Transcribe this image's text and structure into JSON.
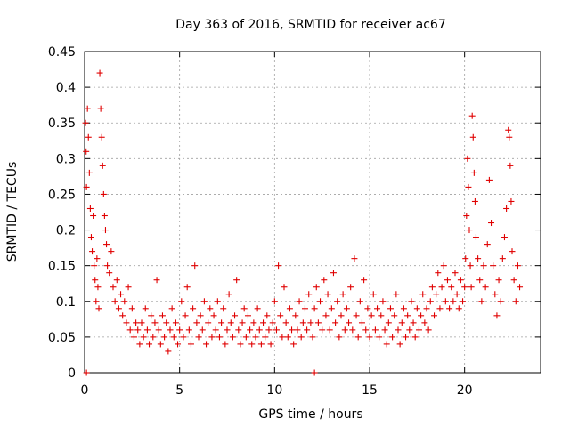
{
  "chart_data": {
    "type": "scatter",
    "title": "Day 363 of 2016, SRMTID for receiver ac67",
    "xlabel": "GPS time / hours",
    "ylabel": "SRMTID / TECUs",
    "xlim": [
      0,
      24
    ],
    "ylim": [
      0,
      0.45
    ],
    "x_ticks": [
      0,
      5,
      10,
      15,
      20
    ],
    "y_ticks": [
      0,
      0.05,
      0.1,
      0.15,
      0.2,
      0.25,
      0.3,
      0.35,
      0.4,
      0.45
    ],
    "x_tick_labels": [
      "0",
      "5",
      "10",
      "15",
      "20"
    ],
    "y_tick_labels": [
      "0",
      "0.05",
      "0.1",
      "0.15",
      "0.2",
      "0.25",
      "0.3",
      "0.35",
      "0.4",
      "0.45"
    ],
    "grid": true,
    "marker": "+",
    "color": "#e00000",
    "series": [
      {
        "name": "SRMTID",
        "points": [
          [
            0.05,
            0.35
          ],
          [
            0.08,
            0.31
          ],
          [
            0.1,
            0.26
          ],
          [
            0.15,
            0.37
          ],
          [
            0.2,
            0.33
          ],
          [
            0.25,
            0.28
          ],
          [
            0.3,
            0.23
          ],
          [
            0.35,
            0.19
          ],
          [
            0.4,
            0.17
          ],
          [
            0.45,
            0.22
          ],
          [
            0.5,
            0.15
          ],
          [
            0.55,
            0.13
          ],
          [
            0.6,
            0.1
          ],
          [
            0.65,
            0.16
          ],
          [
            0.7,
            0.12
          ],
          [
            0.75,
            0.09
          ],
          [
            0.8,
            0.42
          ],
          [
            0.85,
            0.37
          ],
          [
            0.9,
            0.33
          ],
          [
            0.95,
            0.29
          ],
          [
            1.0,
            0.25
          ],
          [
            1.05,
            0.22
          ],
          [
            1.1,
            0.2
          ],
          [
            1.15,
            0.18
          ],
          [
            1.2,
            0.15
          ],
          [
            1.3,
            0.14
          ],
          [
            1.4,
            0.17
          ],
          [
            1.5,
            0.12
          ],
          [
            1.6,
            0.1
          ],
          [
            1.7,
            0.13
          ],
          [
            1.8,
            0.09
          ],
          [
            1.9,
            0.11
          ],
          [
            2.0,
            0.08
          ],
          [
            2.1,
            0.1
          ],
          [
            2.2,
            0.07
          ],
          [
            2.3,
            0.12
          ],
          [
            2.4,
            0.06
          ],
          [
            2.5,
            0.09
          ],
          [
            2.6,
            0.05
          ],
          [
            2.7,
            0.07
          ],
          [
            2.8,
            0.06
          ],
          [
            2.9,
            0.04
          ],
          [
            3.0,
            0.07
          ],
          [
            3.1,
            0.05
          ],
          [
            3.2,
            0.09
          ],
          [
            3.3,
            0.06
          ],
          [
            3.4,
            0.04
          ],
          [
            3.5,
            0.08
          ],
          [
            3.6,
            0.05
          ],
          [
            3.7,
            0.07
          ],
          [
            3.8,
            0.13
          ],
          [
            3.9,
            0.06
          ],
          [
            4.0,
            0.04
          ],
          [
            4.1,
            0.08
          ],
          [
            4.2,
            0.05
          ],
          [
            4.3,
            0.07
          ],
          [
            4.4,
            0.03
          ],
          [
            4.5,
            0.06
          ],
          [
            4.6,
            0.09
          ],
          [
            4.7,
            0.05
          ],
          [
            4.8,
            0.07
          ],
          [
            4.9,
            0.04
          ],
          [
            5.0,
            0.06
          ],
          [
            5.1,
            0.1
          ],
          [
            5.2,
            0.05
          ],
          [
            5.3,
            0.08
          ],
          [
            5.4,
            0.12
          ],
          [
            5.5,
            0.06
          ],
          [
            5.6,
            0.04
          ],
          [
            5.7,
            0.09
          ],
          [
            5.8,
            0.15
          ],
          [
            5.9,
            0.07
          ],
          [
            6.0,
            0.05
          ],
          [
            6.1,
            0.08
          ],
          [
            6.2,
            0.06
          ],
          [
            6.3,
            0.1
          ],
          [
            6.4,
            0.04
          ],
          [
            6.5,
            0.07
          ],
          [
            6.6,
            0.09
          ],
          [
            6.7,
            0.05
          ],
          [
            6.8,
            0.08
          ],
          [
            6.9,
            0.06
          ],
          [
            7.0,
            0.1
          ],
          [
            7.1,
            0.05
          ],
          [
            7.2,
            0.07
          ],
          [
            7.3,
            0.09
          ],
          [
            7.4,
            0.04
          ],
          [
            7.5,
            0.06
          ],
          [
            7.6,
            0.11
          ],
          [
            7.7,
            0.07
          ],
          [
            7.8,
            0.05
          ],
          [
            7.9,
            0.08
          ],
          [
            8.0,
            0.13
          ],
          [
            8.1,
            0.06
          ],
          [
            8.2,
            0.04
          ],
          [
            8.3,
            0.07
          ],
          [
            8.4,
            0.09
          ],
          [
            8.5,
            0.05
          ],
          [
            8.6,
            0.08
          ],
          [
            8.7,
            0.06
          ],
          [
            8.8,
            0.04
          ],
          [
            8.9,
            0.07
          ],
          [
            9.0,
            0.05
          ],
          [
            9.1,
            0.09
          ],
          [
            9.2,
            0.06
          ],
          [
            9.3,
            0.04
          ],
          [
            9.4,
            0.07
          ],
          [
            9.5,
            0.05
          ],
          [
            9.6,
            0.08
          ],
          [
            9.7,
            0.06
          ],
          [
            9.8,
            0.04
          ],
          [
            9.9,
            0.07
          ],
          [
            10.0,
            0.1
          ],
          [
            10.1,
            0.06
          ],
          [
            10.2,
            0.15
          ],
          [
            10.3,
            0.08
          ],
          [
            10.4,
            0.05
          ],
          [
            10.5,
            0.12
          ],
          [
            10.6,
            0.07
          ],
          [
            10.7,
            0.05
          ],
          [
            10.8,
            0.09
          ],
          [
            10.9,
            0.06
          ],
          [
            11.0,
            0.04
          ],
          [
            11.1,
            0.08
          ],
          [
            11.2,
            0.06
          ],
          [
            11.3,
            0.1
          ],
          [
            11.4,
            0.05
          ],
          [
            11.5,
            0.07
          ],
          [
            11.6,
            0.09
          ],
          [
            11.7,
            0.06
          ],
          [
            11.8,
            0.11
          ],
          [
            11.9,
            0.07
          ],
          [
            12.0,
            0.05
          ],
          [
            12.1,
            0.09
          ],
          [
            12.2,
            0.12
          ],
          [
            12.3,
            0.07
          ],
          [
            12.4,
            0.1
          ],
          [
            12.5,
            0.06
          ],
          [
            12.6,
            0.13
          ],
          [
            12.7,
            0.08
          ],
          [
            12.8,
            0.11
          ],
          [
            12.9,
            0.06
          ],
          [
            13.0,
            0.09
          ],
          [
            13.1,
            0.14
          ],
          [
            13.2,
            0.07
          ],
          [
            13.3,
            0.1
          ],
          [
            13.4,
            0.05
          ],
          [
            13.5,
            0.08
          ],
          [
            13.6,
            0.11
          ],
          [
            13.7,
            0.06
          ],
          [
            13.8,
            0.09
          ],
          [
            13.9,
            0.07
          ],
          [
            14.0,
            0.12
          ],
          [
            14.1,
            0.06
          ],
          [
            14.2,
            0.16
          ],
          [
            14.3,
            0.08
          ],
          [
            14.4,
            0.05
          ],
          [
            14.5,
            0.1
          ],
          [
            14.6,
            0.07
          ],
          [
            14.7,
            0.13
          ],
          [
            14.8,
            0.06
          ],
          [
            14.9,
            0.09
          ],
          [
            15.0,
            0.05
          ],
          [
            15.1,
            0.08
          ],
          [
            15.2,
            0.11
          ],
          [
            15.3,
            0.06
          ],
          [
            15.4,
            0.09
          ],
          [
            15.5,
            0.05
          ],
          [
            15.6,
            0.08
          ],
          [
            15.7,
            0.1
          ],
          [
            15.8,
            0.06
          ],
          [
            15.9,
            0.04
          ],
          [
            16.0,
            0.07
          ],
          [
            16.1,
            0.09
          ],
          [
            16.2,
            0.05
          ],
          [
            16.3,
            0.08
          ],
          [
            16.4,
            0.11
          ],
          [
            16.5,
            0.06
          ],
          [
            16.6,
            0.04
          ],
          [
            16.7,
            0.07
          ],
          [
            16.8,
            0.09
          ],
          [
            16.9,
            0.05
          ],
          [
            17.0,
            0.08
          ],
          [
            17.1,
            0.06
          ],
          [
            17.2,
            0.1
          ],
          [
            17.3,
            0.07
          ],
          [
            17.4,
            0.05
          ],
          [
            17.5,
            0.09
          ],
          [
            17.6,
            0.06
          ],
          [
            17.7,
            0.08
          ],
          [
            17.8,
            0.11
          ],
          [
            17.9,
            0.07
          ],
          [
            18.0,
            0.09
          ],
          [
            18.1,
            0.06
          ],
          [
            18.2,
            0.1
          ],
          [
            18.3,
            0.12
          ],
          [
            18.4,
            0.08
          ],
          [
            18.5,
            0.11
          ],
          [
            18.6,
            0.14
          ],
          [
            18.7,
            0.09
          ],
          [
            18.8,
            0.12
          ],
          [
            18.9,
            0.15
          ],
          [
            19.0,
            0.1
          ],
          [
            19.1,
            0.13
          ],
          [
            19.2,
            0.09
          ],
          [
            19.3,
            0.12
          ],
          [
            19.4,
            0.1
          ],
          [
            19.5,
            0.14
          ],
          [
            19.6,
            0.11
          ],
          [
            19.7,
            0.09
          ],
          [
            19.8,
            0.13
          ],
          [
            19.9,
            0.1
          ],
          [
            20.0,
            0.12
          ],
          [
            20.05,
            0.16
          ],
          [
            20.1,
            0.22
          ],
          [
            20.15,
            0.3
          ],
          [
            20.2,
            0.26
          ],
          [
            20.25,
            0.2
          ],
          [
            20.3,
            0.15
          ],
          [
            20.35,
            0.12
          ],
          [
            20.4,
            0.36
          ],
          [
            20.45,
            0.33
          ],
          [
            20.5,
            0.28
          ],
          [
            20.55,
            0.24
          ],
          [
            20.6,
            0.19
          ],
          [
            20.7,
            0.16
          ],
          [
            20.8,
            0.13
          ],
          [
            20.9,
            0.1
          ],
          [
            21.0,
            0.15
          ],
          [
            21.1,
            0.12
          ],
          [
            21.2,
            0.18
          ],
          [
            21.3,
            0.27
          ],
          [
            21.4,
            0.21
          ],
          [
            21.5,
            0.15
          ],
          [
            21.6,
            0.11
          ],
          [
            21.7,
            0.08
          ],
          [
            21.8,
            0.13
          ],
          [
            21.9,
            0.1
          ],
          [
            22.0,
            0.16
          ],
          [
            22.1,
            0.19
          ],
          [
            22.2,
            0.23
          ],
          [
            22.3,
            0.34
          ],
          [
            22.35,
            0.33
          ],
          [
            22.4,
            0.29
          ],
          [
            22.45,
            0.24
          ],
          [
            22.5,
            0.17
          ],
          [
            22.6,
            0.13
          ],
          [
            22.7,
            0.1
          ],
          [
            22.8,
            0.15
          ],
          [
            22.9,
            0.12
          ],
          [
            0.1,
            0.0
          ],
          [
            12.1,
            0.0
          ]
        ]
      }
    ]
  }
}
